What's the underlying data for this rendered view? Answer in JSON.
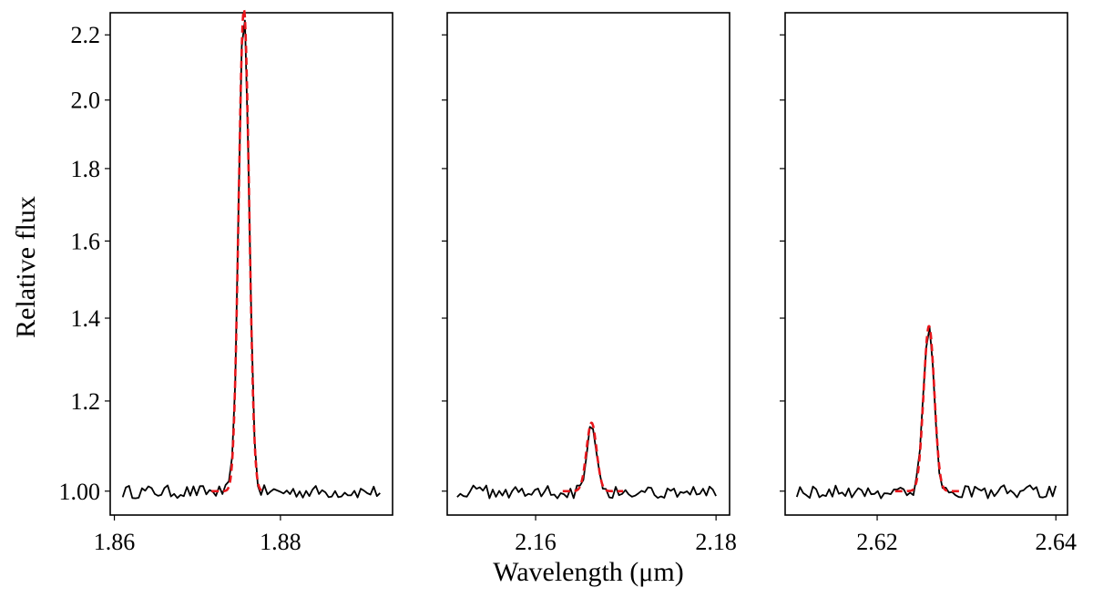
{
  "chart_data": {
    "type": "line",
    "ylabel": "Relative flux",
    "xlabel": "Wavelength (μm)",
    "shared_y": true,
    "ylim": [
      0.95,
      2.27
    ],
    "y_ticks": [
      "1.00",
      "1.2",
      "1.4",
      "1.6",
      "1.8",
      "2.0",
      "2.2"
    ],
    "y_tick_values": [
      1.0,
      1.2,
      1.4,
      1.6,
      1.8,
      2.0,
      2.2
    ],
    "y_scale": "sqrt",
    "colors": {
      "observed": "#000000",
      "fit": "#e8161b"
    },
    "panels": [
      {
        "xlim": [
          1.8595,
          1.8935
        ],
        "x_ticks": [
          "1.86",
          "1.88"
        ],
        "x_tick_values": [
          1.86,
          1.88
        ],
        "continuum": 1.0,
        "line": {
          "center": 1.8756,
          "peak": 2.28,
          "sigma": 0.00058
        },
        "fit_range": [
          1.8717,
          1.878
        ],
        "observed_range": [
          1.861,
          1.892
        ]
      },
      {
        "xlim": [
          2.1502,
          2.1815
        ],
        "x_ticks": [
          "2.16",
          "2.18"
        ],
        "x_tick_values": [
          2.16,
          2.18
        ],
        "continuum": 1.0,
        "line": {
          "center": 2.1662,
          "peak": 1.15,
          "sigma": 0.00055
        },
        "fit_range": [
          2.163,
          2.1697
        ],
        "observed_range": [
          2.1513,
          2.18
        ]
      },
      {
        "xlim": [
          2.6097,
          2.6413
        ],
        "x_ticks": [
          "2.62",
          "2.64"
        ],
        "x_tick_values": [
          2.62,
          2.64
        ],
        "continuum": 1.0,
        "line": {
          "center": 2.6258,
          "peak": 1.38,
          "sigma": 0.00058
        },
        "fit_range": [
          2.622,
          2.6292
        ],
        "observed_range": [
          2.611,
          2.64
        ]
      }
    ]
  }
}
